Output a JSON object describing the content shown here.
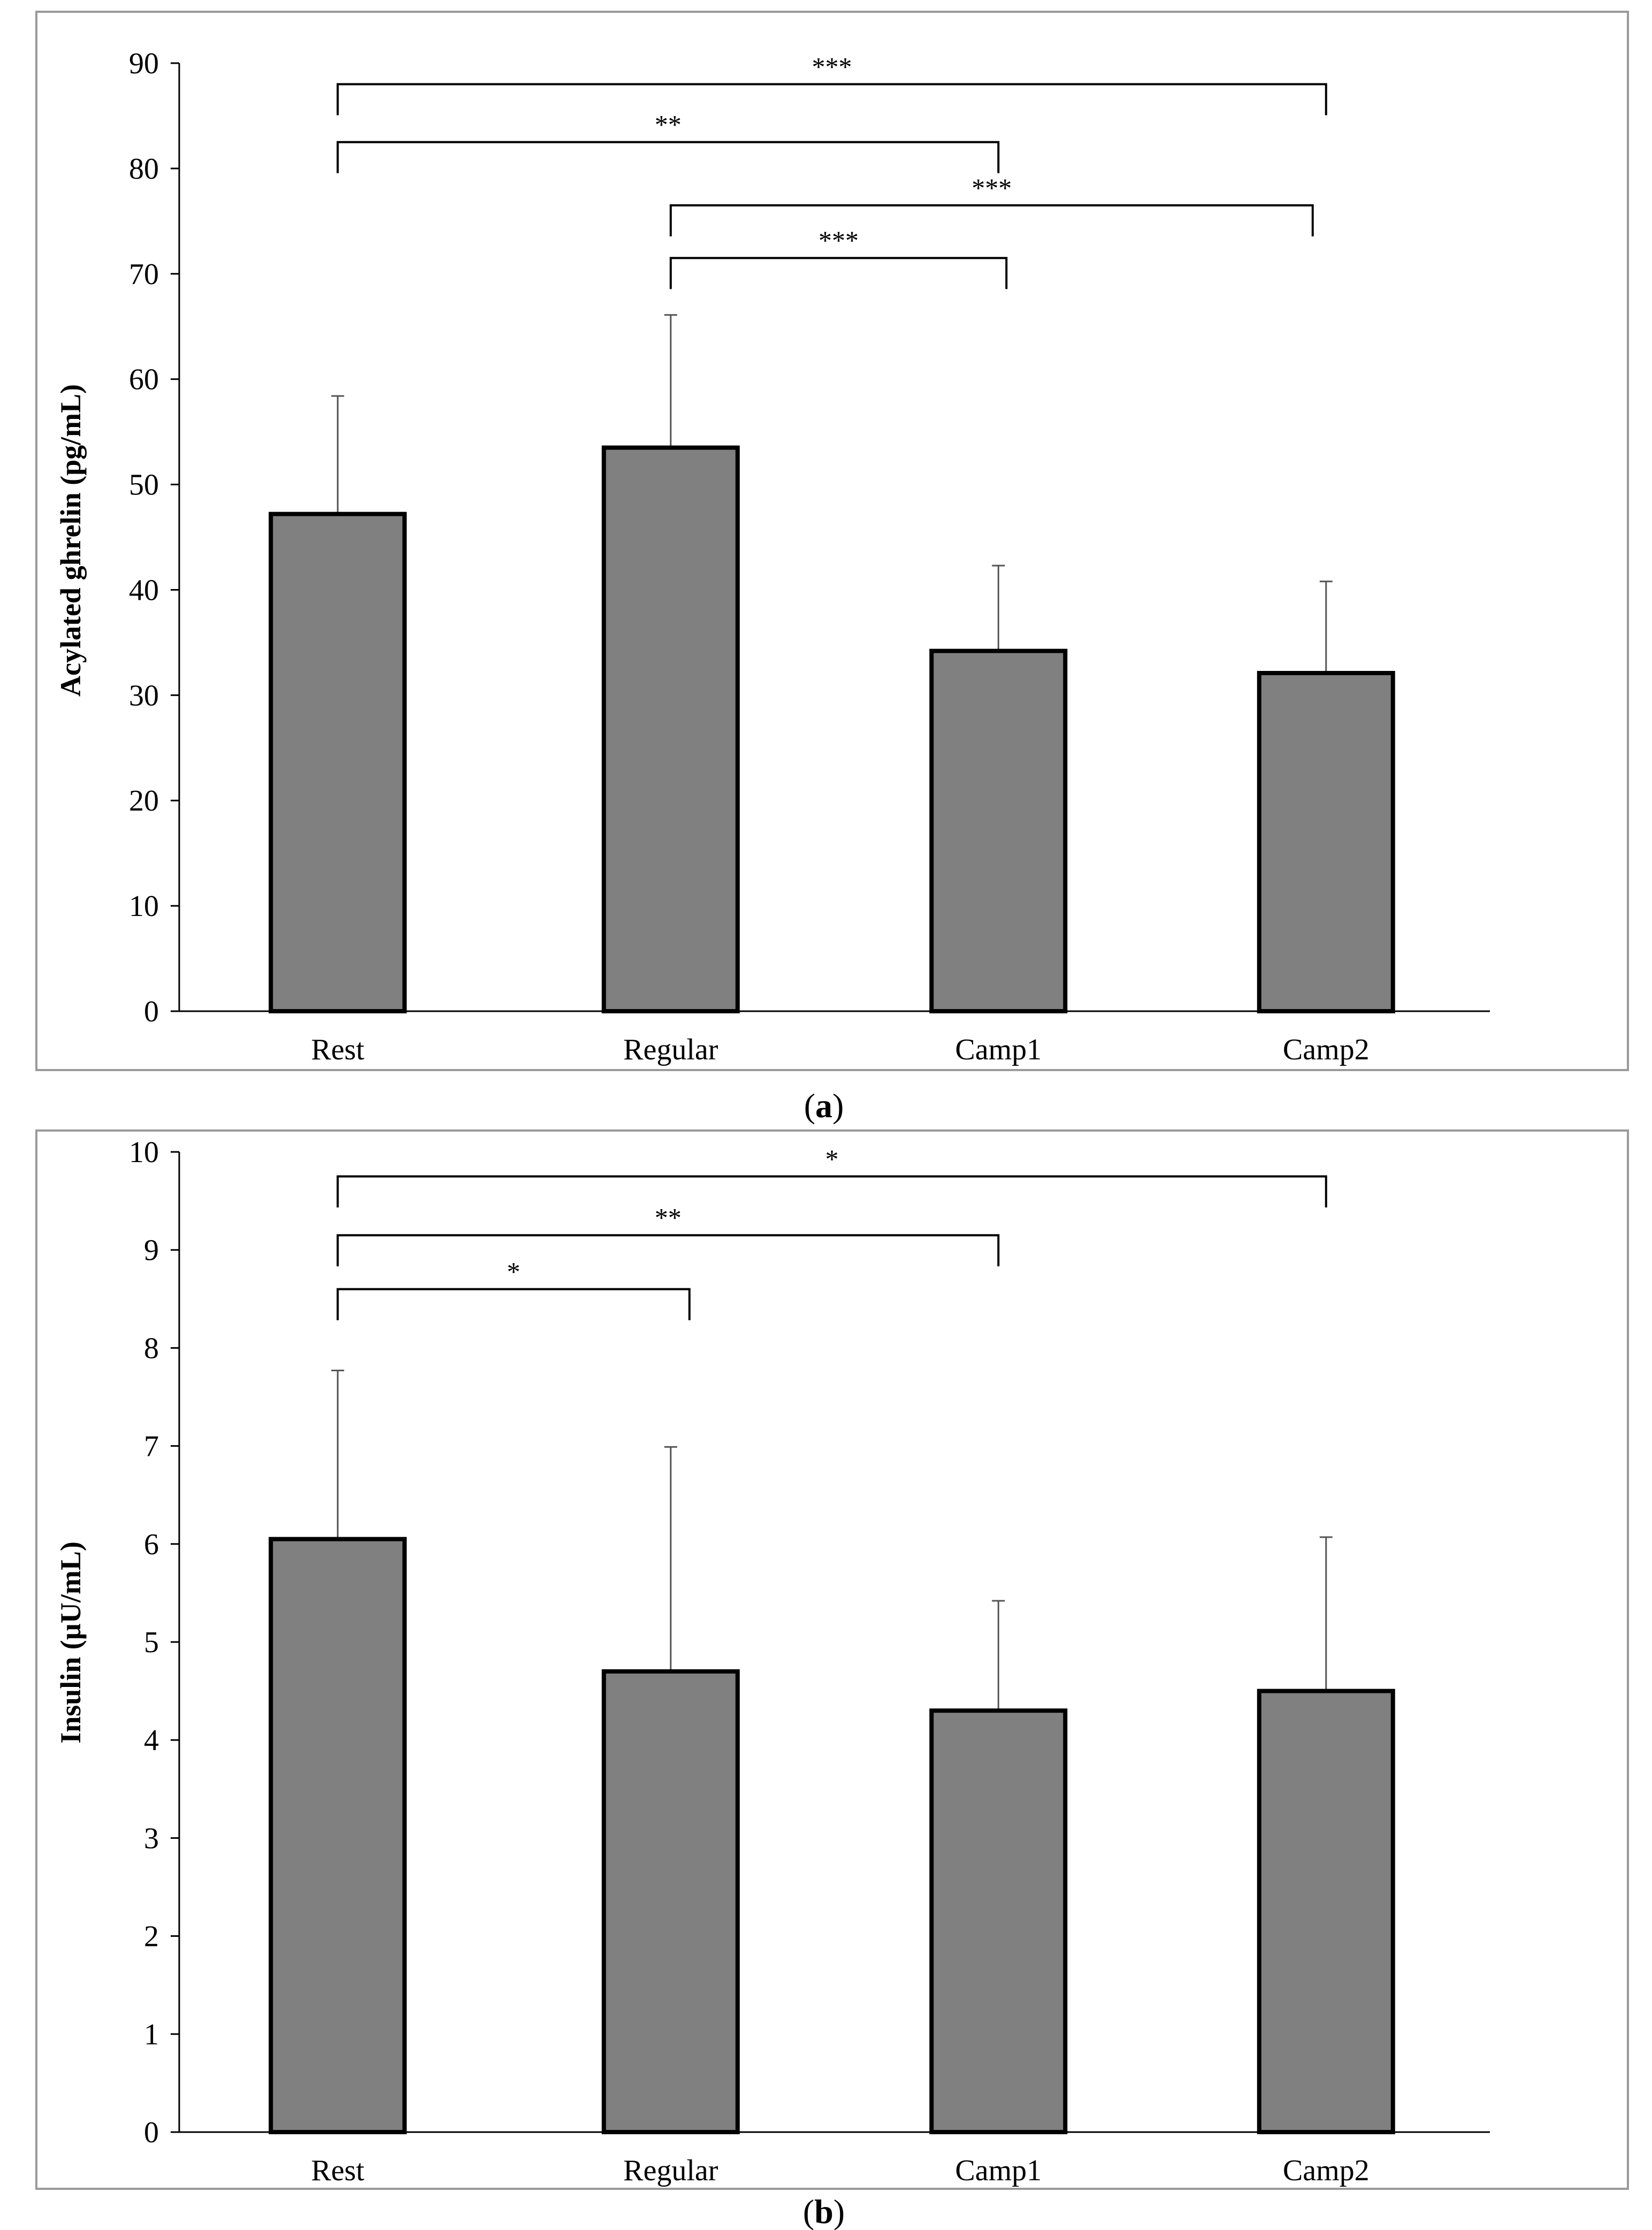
{
  "chart_data": [
    {
      "type": "bar",
      "panel_label": "a",
      "categories": [
        "Rest",
        "Regular",
        "Camp1",
        "Camp2"
      ],
      "values": [
        47.2,
        53.5,
        34.2,
        32.1
      ],
      "error_upper": [
        58.4,
        66.1,
        42.3,
        40.8
      ],
      "ylabel": "Acylated ghrelin (pg/mL)",
      "ylim": [
        0,
        90
      ],
      "yticks": [
        0,
        10,
        20,
        30,
        40,
        50,
        60,
        70,
        80,
        90
      ],
      "significance": [
        {
          "from": "Rest",
          "to": "Camp2",
          "stars": "***",
          "level": 88
        },
        {
          "from": "Rest",
          "to": "Camp1",
          "stars": "**",
          "level": 82.5
        },
        {
          "from": "Regular",
          "to": "Camp2",
          "stars": "***",
          "level": 76.5
        },
        {
          "from": "Regular",
          "to": "Camp1",
          "stars": "***",
          "level": 71.5
        }
      ],
      "bar_color": "#808080"
    },
    {
      "type": "bar",
      "panel_label": "b",
      "categories": [
        "Rest",
        "Regular",
        "Camp1",
        "Camp2"
      ],
      "values": [
        6.05,
        4.7,
        4.3,
        4.5
      ],
      "error_upper": [
        7.77,
        6.99,
        5.42,
        6.07
      ],
      "ylabel": "Insulin (µU/mL)",
      "ylim": [
        0,
        10
      ],
      "yticks": [
        0,
        1,
        2,
        3,
        4,
        5,
        6,
        7,
        8,
        9,
        10
      ],
      "significance": [
        {
          "from": "Rest",
          "to": "Camp2",
          "stars": "*",
          "level": 9.75
        },
        {
          "from": "Rest",
          "to": "Camp1",
          "stars": "**",
          "level": 9.15
        },
        {
          "from": "Rest",
          "to": "Regular",
          "stars": "*",
          "level": 8.6
        }
      ],
      "bar_color": "#808080"
    }
  ]
}
